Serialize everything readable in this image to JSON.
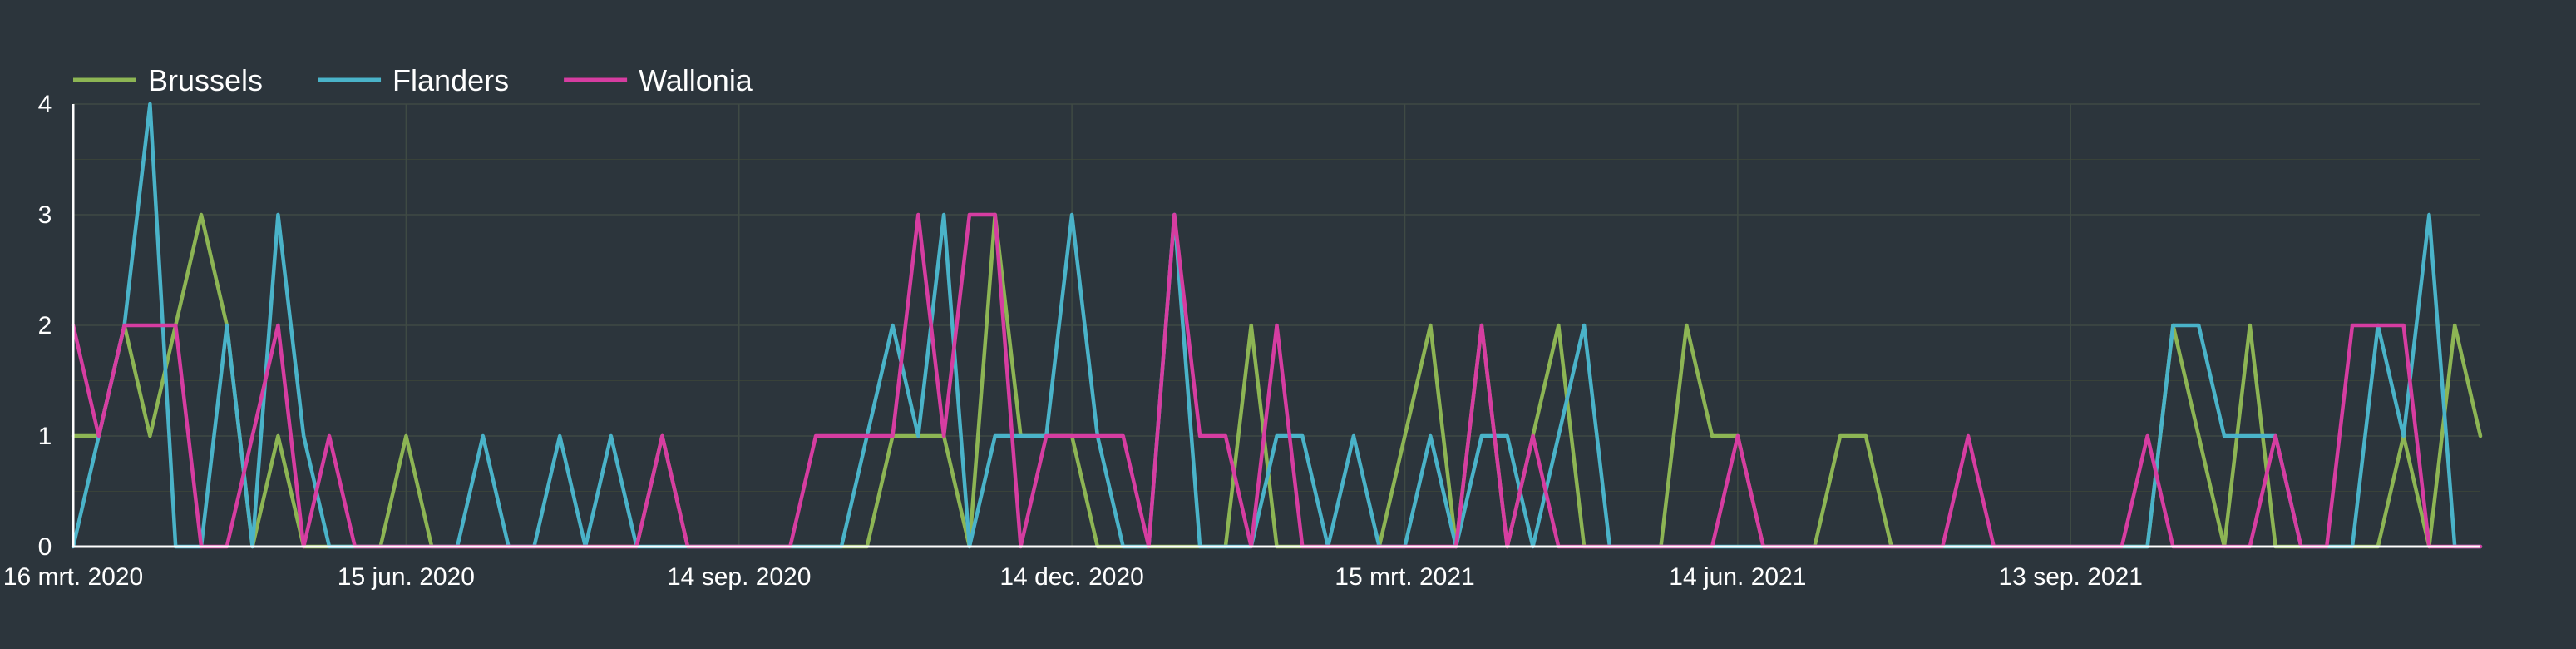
{
  "chart_data": {
    "type": "line",
    "title": "",
    "xlabel": "",
    "ylabel": "",
    "ylim": [
      0,
      4
    ],
    "y_ticks": [
      0,
      1,
      2,
      3,
      4
    ],
    "x_range": [
      "2020-03-16",
      "2022-01-03"
    ],
    "x_ticks": [
      {
        "date": "2020-03-16",
        "label": "16 mrt. 2020"
      },
      {
        "date": "2020-06-15",
        "label": "15 jun. 2020"
      },
      {
        "date": "2020-09-14",
        "label": "14 sep. 2020"
      },
      {
        "date": "2020-12-14",
        "label": "14 dec. 2020"
      },
      {
        "date": "2021-03-15",
        "label": "15 mrt. 2021"
      },
      {
        "date": "2021-06-14",
        "label": "14 jun. 2021"
      },
      {
        "date": "2021-09-13",
        "label": "13 sep. 2021"
      }
    ],
    "grid": true,
    "legend_position": "top-left",
    "x": [
      "2020-03-16",
      "2020-03-23",
      "2020-03-30",
      "2020-04-06",
      "2020-04-13",
      "2020-04-20",
      "2020-04-27",
      "2020-05-04",
      "2020-05-11",
      "2020-05-18",
      "2020-05-25",
      "2020-06-01",
      "2020-06-08",
      "2020-06-15",
      "2020-06-22",
      "2020-06-29",
      "2020-07-06",
      "2020-07-13",
      "2020-07-20",
      "2020-07-27",
      "2020-08-03",
      "2020-08-10",
      "2020-08-17",
      "2020-08-24",
      "2020-08-31",
      "2020-09-07",
      "2020-09-14",
      "2020-09-21",
      "2020-09-28",
      "2020-10-05",
      "2020-10-12",
      "2020-10-19",
      "2020-10-26",
      "2020-11-02",
      "2020-11-09",
      "2020-11-16",
      "2020-11-23",
      "2020-11-30",
      "2020-12-07",
      "2020-12-14",
      "2020-12-21",
      "2020-12-28",
      "2021-01-04",
      "2021-01-11",
      "2021-01-18",
      "2021-01-25",
      "2021-02-01",
      "2021-02-08",
      "2021-02-15",
      "2021-02-22",
      "2021-03-01",
      "2021-03-08",
      "2021-03-15",
      "2021-03-22",
      "2021-03-29",
      "2021-04-05",
      "2021-04-12",
      "2021-04-19",
      "2021-04-26",
      "2021-05-03",
      "2021-05-10",
      "2021-05-17",
      "2021-05-24",
      "2021-05-31",
      "2021-06-07",
      "2021-06-14",
      "2021-06-21",
      "2021-06-28",
      "2021-07-05",
      "2021-07-12",
      "2021-07-19",
      "2021-07-26",
      "2021-08-02",
      "2021-08-09",
      "2021-08-16",
      "2021-08-23",
      "2021-08-30",
      "2021-09-06",
      "2021-09-13",
      "2021-09-20",
      "2021-09-27",
      "2021-10-04",
      "2021-10-11",
      "2021-10-18",
      "2021-10-25",
      "2021-11-01",
      "2021-11-08",
      "2021-11-15",
      "2021-11-22",
      "2021-11-29",
      "2021-12-06",
      "2021-12-13",
      "2021-12-20",
      "2021-12-27",
      "2022-01-03"
    ],
    "series": [
      {
        "name": "Brussels",
        "color": "#8db554",
        "values": [
          1,
          1,
          2,
          1,
          2,
          3,
          2,
          0,
          1,
          0,
          0,
          0,
          0,
          1,
          0,
          0,
          0,
          0,
          0,
          0,
          0,
          0,
          0,
          1,
          0,
          0,
          0,
          0,
          0,
          0,
          0,
          0,
          1,
          1,
          1,
          0,
          3,
          1,
          1,
          1,
          0,
          0,
          0,
          0,
          0,
          0,
          2,
          0,
          0,
          0,
          0,
          0,
          1,
          2,
          0,
          2,
          0,
          1,
          2,
          0,
          0,
          0,
          0,
          2,
          1,
          1,
          0,
          0,
          0,
          1,
          1,
          0,
          0,
          0,
          0,
          0,
          0,
          0,
          0,
          0,
          0,
          0,
          2,
          1,
          0,
          2,
          0,
          0,
          0,
          0,
          0,
          1,
          0,
          2,
          1
        ]
      },
      {
        "name": "Flanders",
        "color": "#4ab3c9",
        "values": [
          0,
          1,
          2,
          4,
          0,
          0,
          2,
          0,
          3,
          1,
          0,
          0,
          0,
          0,
          0,
          0,
          1,
          0,
          0,
          1,
          0,
          1,
          0,
          0,
          0,
          0,
          0,
          0,
          0,
          0,
          0,
          1,
          2,
          1,
          3,
          0,
          1,
          1,
          1,
          3,
          1,
          0,
          0,
          3,
          0,
          0,
          0,
          1,
          1,
          0,
          1,
          0,
          0,
          1,
          0,
          1,
          1,
          0,
          1,
          2,
          0,
          0,
          0,
          0,
          0,
          0,
          0,
          0,
          0,
          0,
          0,
          0,
          0,
          0,
          0,
          0,
          0,
          0,
          0,
          0,
          0,
          0,
          2,
          2,
          1,
          1,
          1,
          0,
          0,
          0,
          2,
          1,
          3,
          0,
          0
        ]
      },
      {
        "name": "Wallonia",
        "color": "#d63da1",
        "values": [
          2,
          1,
          2,
          2,
          2,
          0,
          0,
          1,
          2,
          0,
          1,
          0,
          0,
          0,
          0,
          0,
          0,
          0,
          0,
          0,
          0,
          0,
          0,
          1,
          0,
          0,
          0,
          0,
          0,
          1,
          1,
          1,
          1,
          3,
          1,
          3,
          3,
          0,
          1,
          1,
          1,
          1,
          0,
          3,
          1,
          1,
          0,
          2,
          0,
          0,
          0,
          0,
          0,
          0,
          0,
          2,
          0,
          1,
          0,
          0,
          0,
          0,
          0,
          0,
          0,
          1,
          0,
          0,
          0,
          0,
          0,
          0,
          0,
          0,
          1,
          0,
          0,
          0,
          0,
          0,
          0,
          1,
          0,
          0,
          0,
          0,
          1,
          0,
          0,
          2,
          2,
          2,
          0,
          0,
          0
        ]
      }
    ]
  }
}
